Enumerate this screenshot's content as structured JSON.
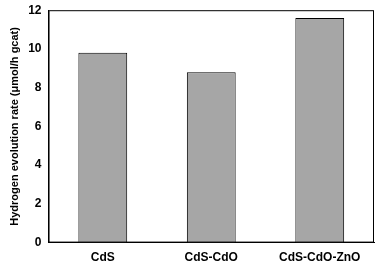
{
  "chart_data": {
    "type": "bar",
    "y_label": "Hydrogen evolution rate (μmol/h gcat)",
    "categories": [
      "CdS",
      "CdS-CdO",
      "CdS-CdO-ZnO"
    ],
    "values": [
      9.8,
      8.8,
      11.6
    ],
    "color": "#a6a6a6",
    "ylim": [
      0,
      12
    ],
    "yticks": [
      0,
      2,
      4,
      6,
      8,
      10,
      12
    ],
    "grid": false
  }
}
